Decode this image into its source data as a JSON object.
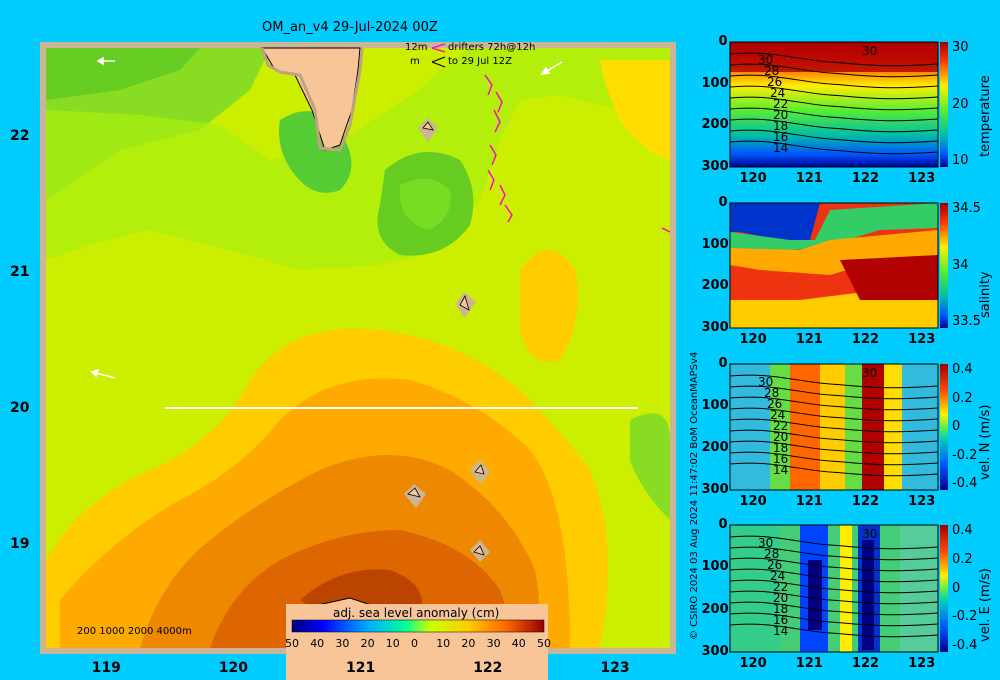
{
  "title": "OM_an_v4  29-Jul-2024 00Z",
  "legend": {
    "drifter_line1_a": "12m",
    "drifter_line1_b": "drifters 72h@12h",
    "drifter_line2_a": "m",
    "drifter_line2_b": "to 29 Jul 12Z",
    "bathymetry": "200  1000  2000  4000m"
  },
  "credit": "© CSIRO 2024   03 Aug 2024 11:47:02 BoM OceanMAPSv4",
  "chart_data": [
    {
      "type": "heatmap",
      "name": "map",
      "colorbar_title": "adj. sea level anomaly (cm)",
      "colorbar_ticks": [
        "-50",
        "-40",
        "-30",
        "-20",
        "-10",
        "0",
        "10",
        "20",
        "30",
        "40",
        "50"
      ],
      "xticks": [
        "119",
        "120",
        "121",
        "122",
        "123"
      ],
      "yticks": [
        "22",
        "21",
        "20",
        "19"
      ],
      "xlim": [
        118.5,
        123.5
      ],
      "ylim": [
        18.2,
        22.7
      ],
      "transect_lat": 20,
      "transect_lon": [
        119.5,
        123.2
      ],
      "anomaly_levels_cm": [
        {
          "region": "north",
          "value": 15
        },
        {
          "region": "center",
          "value": 20
        },
        {
          "region": "south",
          "value": 30
        },
        {
          "region": "southern core",
          "value": 40
        }
      ]
    },
    {
      "type": "heatmap",
      "name": "temperature",
      "colorbar_label": "temperature",
      "colorbar_ticks": [
        "30",
        "20",
        "10"
      ],
      "xticks": [
        "120",
        "121",
        "122",
        "123"
      ],
      "yticks": [
        "0",
        "100",
        "200",
        "300"
      ],
      "contour_labels": [
        "30",
        "30",
        "28",
        "26",
        "24",
        "22",
        "20",
        "18",
        "16",
        "14"
      ]
    },
    {
      "type": "heatmap",
      "name": "salinity",
      "colorbar_label": "salinity",
      "colorbar_ticks": [
        "34.5",
        "34",
        "33.5"
      ],
      "xticks": [
        "120",
        "121",
        "122",
        "123"
      ],
      "yticks": [
        "0",
        "100",
        "200",
        "300"
      ]
    },
    {
      "type": "heatmap",
      "name": "vel_n",
      "colorbar_label": "vel. N (m/s)",
      "colorbar_ticks": [
        "0.4",
        "0.2",
        "0",
        "-0.2",
        "-0.4"
      ],
      "xticks": [
        "120",
        "121",
        "122",
        "123"
      ],
      "yticks": [
        "0",
        "100",
        "200",
        "300"
      ],
      "contour_labels": [
        "30",
        "30",
        "28",
        "26",
        "24",
        "22",
        "20",
        "18",
        "16",
        "14"
      ]
    },
    {
      "type": "heatmap",
      "name": "vel_e",
      "colorbar_label": "vel. E (m/s)",
      "colorbar_ticks": [
        "0.4",
        "0.2",
        "0",
        "-0.2",
        "-0.4"
      ],
      "xticks": [
        "120",
        "121",
        "122",
        "123"
      ],
      "yticks": [
        "0",
        "100",
        "200",
        "300"
      ],
      "contour_labels": [
        "30",
        "30",
        "28",
        "26",
        "24",
        "22",
        "20",
        "18",
        "16",
        "14"
      ]
    }
  ]
}
